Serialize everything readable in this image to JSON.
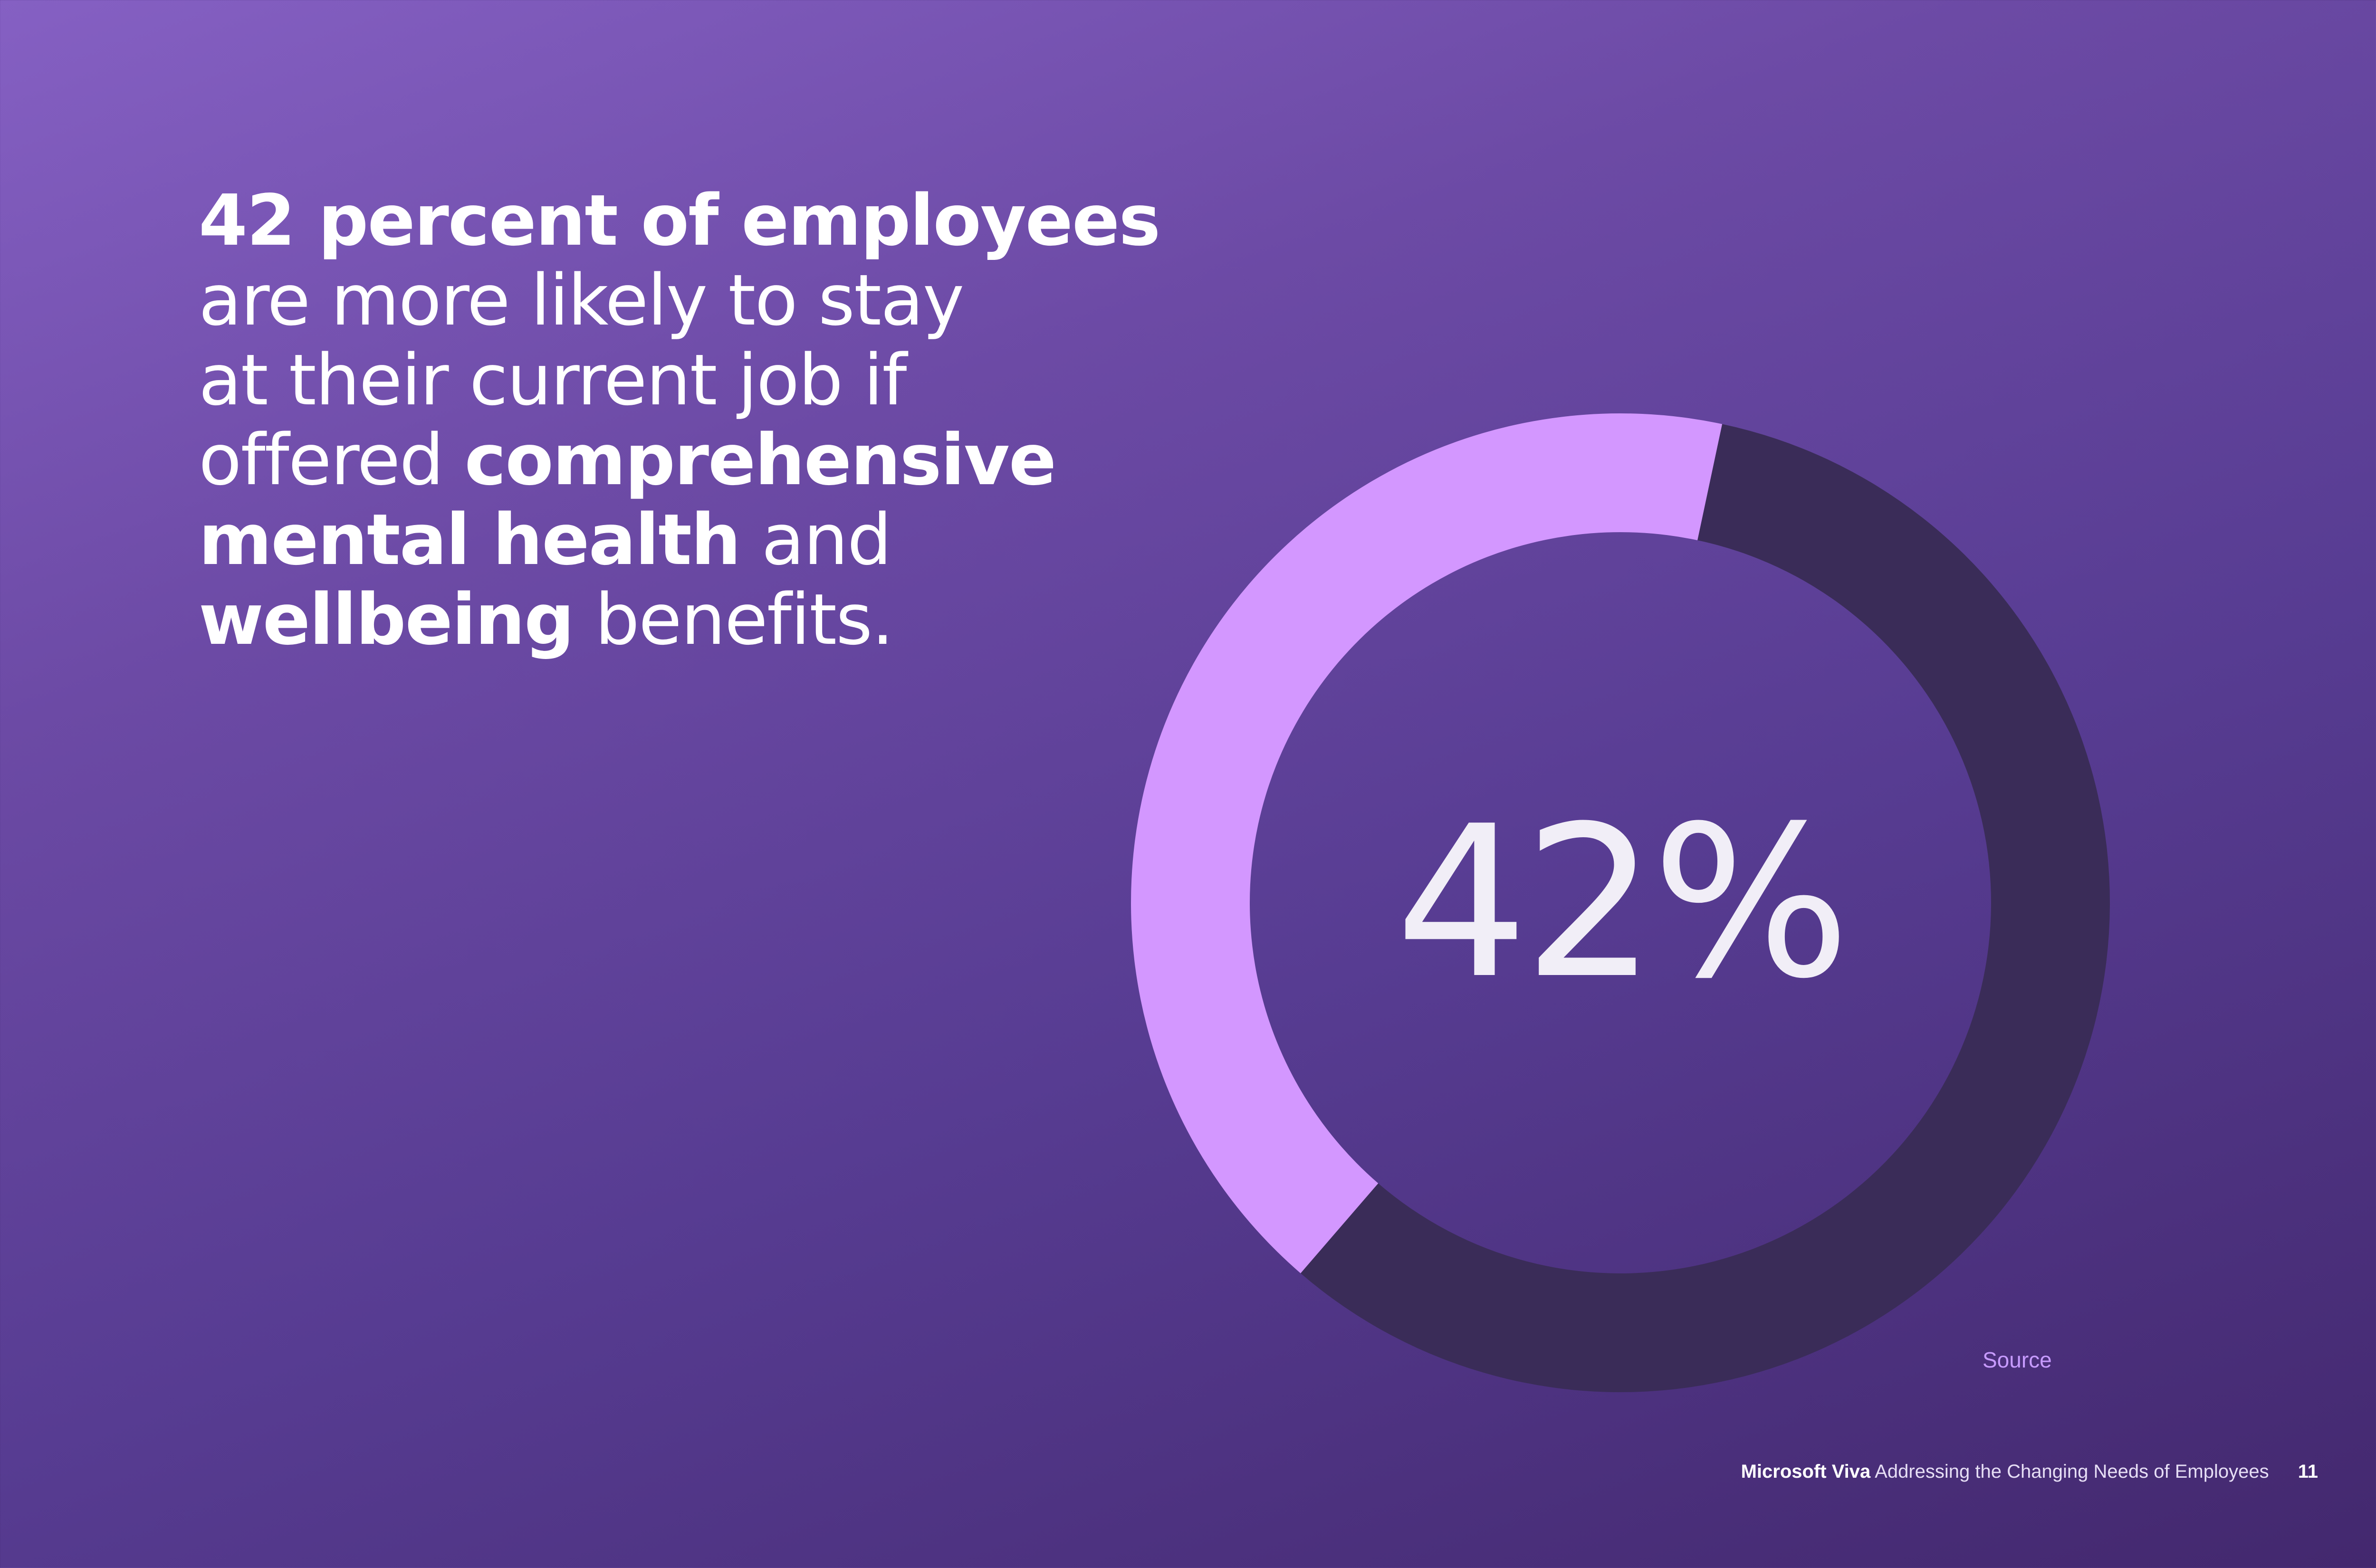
{
  "headline": {
    "line1_bold": "42 percent of employees",
    "line2": "are more likely to stay",
    "line3": "at their current job if",
    "line4_light": "offered ",
    "line4_bold": "comprehensive",
    "line5_bold": "mental health",
    "line5_light": " and",
    "line6_bold": "wellbeing",
    "line6_light": " benefits."
  },
  "chart_data": {
    "type": "pie",
    "donut": true,
    "center_label": "42%",
    "values": [
      42,
      58
    ],
    "colors": [
      "#d397ff",
      "#3a2c58"
    ]
  },
  "source_label": "Source",
  "footer": {
    "brand": "Microsoft Viva",
    "doc_title": "Addressing the Changing Needs of Employees",
    "page_number": "11"
  }
}
